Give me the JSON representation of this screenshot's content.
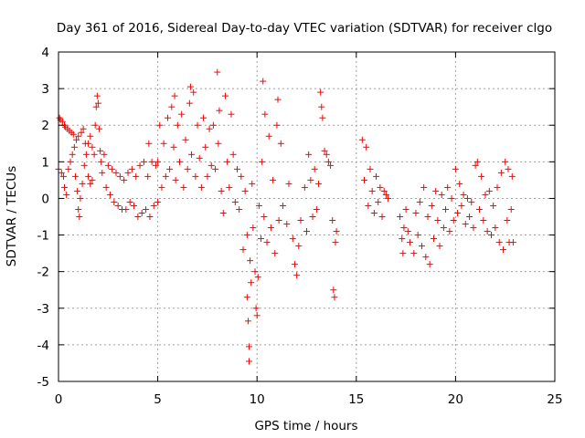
{
  "chart_data": {
    "type": "scatter",
    "title": "Day 361 of 2016, Sidereal Day-to-day VTEC variation (SDTVAR) for receiver clgo",
    "xlabel": "GPS time / hours",
    "ylabel": "SDTVAR / TECUs",
    "xlim": [
      0,
      25
    ],
    "ylim": [
      -5,
      4
    ],
    "xticks": [
      0,
      5,
      10,
      15,
      20,
      25
    ],
    "yticks": [
      -5,
      -4,
      -3,
      -2,
      -1,
      0,
      1,
      2,
      3,
      4
    ],
    "xtick_labels": [
      "0",
      "5",
      "10",
      "15",
      "20",
      "25"
    ],
    "ytick_labels": [
      "-5",
      "-4",
      "-3",
      "-2",
      "-1",
      "0",
      "1",
      "2",
      "3",
      "4"
    ],
    "grid": true,
    "marker": "+",
    "color": "#ff0000",
    "series": [
      {
        "name": "SDTVAR",
        "points": [
          [
            0.0,
            0.8
          ],
          [
            0.05,
            2.2
          ],
          [
            0.1,
            2.15
          ],
          [
            0.15,
            0.7
          ],
          [
            0.2,
            2.1
          ],
          [
            0.25,
            0.6
          ],
          [
            0.3,
            2.0
          ],
          [
            0.3,
            0.3
          ],
          [
            0.35,
            1.95
          ],
          [
            0.4,
            0.1
          ],
          [
            0.45,
            1.9
          ],
          [
            0.5,
            0.8
          ],
          [
            0.55,
            1.85
          ],
          [
            0.6,
            1.0
          ],
          [
            0.65,
            1.8
          ],
          [
            0.7,
            1.2
          ],
          [
            0.75,
            1.75
          ],
          [
            0.8,
            1.4
          ],
          [
            0.85,
            0.6
          ],
          [
            0.9,
            1.6
          ],
          [
            0.95,
            0.2
          ],
          [
            1.0,
            -0.3
          ],
          [
            1.0,
            1.7
          ],
          [
            1.05,
            -0.5
          ],
          [
            1.1,
            0.0
          ],
          [
            1.15,
            1.8
          ],
          [
            1.2,
            0.4
          ],
          [
            1.25,
            1.9
          ],
          [
            1.3,
            0.9
          ],
          [
            1.35,
            1.5
          ],
          [
            1.4,
            1.2
          ],
          [
            1.5,
            0.6
          ],
          [
            1.5,
            1.5
          ],
          [
            1.6,
            0.4
          ],
          [
            1.6,
            1.7
          ],
          [
            1.7,
            0.5
          ],
          [
            1.7,
            1.4
          ],
          [
            1.8,
            1.2
          ],
          [
            1.85,
            2.0
          ],
          [
            1.9,
            2.5
          ],
          [
            1.95,
            2.8
          ],
          [
            2.0,
            2.6
          ],
          [
            2.05,
            1.9
          ],
          [
            2.1,
            1.3
          ],
          [
            2.15,
            1.0
          ],
          [
            2.2,
            0.7
          ],
          [
            2.3,
            1.2
          ],
          [
            2.4,
            0.3
          ],
          [
            2.5,
            0.9
          ],
          [
            2.6,
            0.1
          ],
          [
            2.7,
            0.8
          ],
          [
            2.8,
            -0.1
          ],
          [
            2.9,
            0.7
          ],
          [
            3.0,
            -0.2
          ],
          [
            3.1,
            0.6
          ],
          [
            3.2,
            -0.3
          ],
          [
            3.3,
            0.5
          ],
          [
            3.4,
            -0.3
          ],
          [
            3.5,
            0.7
          ],
          [
            3.6,
            -0.1
          ],
          [
            3.7,
            0.8
          ],
          [
            3.8,
            -0.2
          ],
          [
            3.9,
            0.6
          ],
          [
            4.0,
            -0.5
          ],
          [
            4.1,
            0.9
          ],
          [
            4.2,
            -0.4
          ],
          [
            4.3,
            1.0
          ],
          [
            4.4,
            -0.3
          ],
          [
            4.5,
            0.6
          ],
          [
            4.55,
            1.5
          ],
          [
            4.6,
            -0.5
          ],
          [
            4.7,
            1.0
          ],
          [
            4.8,
            -0.2
          ],
          [
            4.9,
            0.9
          ],
          [
            5.0,
            -0.1
          ],
          [
            5.0,
            1.0
          ],
          [
            5.1,
            2.0
          ],
          [
            5.2,
            0.3
          ],
          [
            5.3,
            1.5
          ],
          [
            5.4,
            0.6
          ],
          [
            5.5,
            2.2
          ],
          [
            5.6,
            0.8
          ],
          [
            5.7,
            2.5
          ],
          [
            5.8,
            1.4
          ],
          [
            5.85,
            2.8
          ],
          [
            5.9,
            0.5
          ],
          [
            6.0,
            2.0
          ],
          [
            6.1,
            1.0
          ],
          [
            6.2,
            2.3
          ],
          [
            6.3,
            0.3
          ],
          [
            6.4,
            1.6
          ],
          [
            6.5,
            0.8
          ],
          [
            6.6,
            2.6
          ],
          [
            6.65,
            3.05
          ],
          [
            6.7,
            1.2
          ],
          [
            6.8,
            2.9
          ],
          [
            6.9,
            0.6
          ],
          [
            7.0,
            2.0
          ],
          [
            7.1,
            1.1
          ],
          [
            7.2,
            0.3
          ],
          [
            7.3,
            2.2
          ],
          [
            7.4,
            1.4
          ],
          [
            7.5,
            0.6
          ],
          [
            7.6,
            1.9
          ],
          [
            7.7,
            0.9
          ],
          [
            7.8,
            2.0
          ],
          [
            7.9,
            0.8
          ],
          [
            8.0,
            3.45
          ],
          [
            8.05,
            1.5
          ],
          [
            8.1,
            2.4
          ],
          [
            8.2,
            0.2
          ],
          [
            8.3,
            -0.4
          ],
          [
            8.4,
            2.8
          ],
          [
            8.5,
            1.0
          ],
          [
            8.6,
            0.3
          ],
          [
            8.7,
            2.3
          ],
          [
            8.8,
            1.2
          ],
          [
            8.9,
            -0.1
          ],
          [
            9.0,
            0.8
          ],
          [
            9.1,
            -0.3
          ],
          [
            9.2,
            0.6
          ],
          [
            9.3,
            -1.4
          ],
          [
            9.4,
            0.2
          ],
          [
            9.5,
            -1.0
          ],
          [
            9.5,
            -2.7
          ],
          [
            9.55,
            -3.35
          ],
          [
            9.6,
            -4.45
          ],
          [
            9.6,
            -4.05
          ],
          [
            9.65,
            -1.7
          ],
          [
            9.7,
            -2.3
          ],
          [
            9.75,
            0.4
          ],
          [
            9.8,
            -0.8
          ],
          [
            9.9,
            -2.0
          ],
          [
            9.95,
            -3.0
          ],
          [
            10.0,
            -3.2
          ],
          [
            10.05,
            -2.15
          ],
          [
            10.1,
            -0.2
          ],
          [
            10.2,
            -1.1
          ],
          [
            10.25,
            1.0
          ],
          [
            10.3,
            3.2
          ],
          [
            10.35,
            -0.5
          ],
          [
            10.4,
            2.3
          ],
          [
            10.5,
            -1.2
          ],
          [
            10.6,
            1.7
          ],
          [
            10.7,
            -0.8
          ],
          [
            10.8,
            0.5
          ],
          [
            10.9,
            -1.5
          ],
          [
            11.0,
            2.0
          ],
          [
            11.05,
            2.7
          ],
          [
            11.1,
            -0.6
          ],
          [
            11.2,
            1.5
          ],
          [
            11.3,
            -0.2
          ],
          [
            11.5,
            -0.7
          ],
          [
            11.6,
            0.4
          ],
          [
            11.8,
            -1.1
          ],
          [
            11.9,
            -1.8
          ],
          [
            12.0,
            -2.1
          ],
          [
            12.1,
            -1.3
          ],
          [
            12.2,
            -0.6
          ],
          [
            12.4,
            0.3
          ],
          [
            12.5,
            -0.9
          ],
          [
            12.6,
            1.2
          ],
          [
            12.7,
            0.5
          ],
          [
            12.8,
            -0.5
          ],
          [
            12.9,
            0.8
          ],
          [
            13.0,
            -0.3
          ],
          [
            13.1,
            0.4
          ],
          [
            13.2,
            2.9
          ],
          [
            13.25,
            2.5
          ],
          [
            13.3,
            2.2
          ],
          [
            13.4,
            1.3
          ],
          [
            13.5,
            1.2
          ],
          [
            13.6,
            1.0
          ],
          [
            13.7,
            0.9
          ],
          [
            13.8,
            -0.6
          ],
          [
            13.85,
            -2.5
          ],
          [
            13.9,
            -2.7
          ],
          [
            13.95,
            -1.2
          ],
          [
            14.0,
            -0.9
          ],
          [
            15.3,
            1.6
          ],
          [
            15.4,
            0.5
          ],
          [
            15.5,
            1.4
          ],
          [
            15.6,
            -0.2
          ],
          [
            15.7,
            0.8
          ],
          [
            15.8,
            0.2
          ],
          [
            15.9,
            -0.4
          ],
          [
            16.0,
            0.6
          ],
          [
            16.1,
            -0.1
          ],
          [
            16.2,
            0.3
          ],
          [
            16.3,
            -0.5
          ],
          [
            16.4,
            0.2
          ],
          [
            16.5,
            0.1
          ],
          [
            16.6,
            0.0
          ],
          [
            17.2,
            -0.5
          ],
          [
            17.3,
            -1.1
          ],
          [
            17.35,
            -1.5
          ],
          [
            17.4,
            -0.8
          ],
          [
            17.5,
            -0.3
          ],
          [
            17.6,
            -0.9
          ],
          [
            17.7,
            -1.2
          ],
          [
            17.9,
            -1.5
          ],
          [
            18.0,
            -0.4
          ],
          [
            18.1,
            -1.0
          ],
          [
            18.2,
            -0.1
          ],
          [
            18.3,
            -1.3
          ],
          [
            18.4,
            0.3
          ],
          [
            18.5,
            -1.6
          ],
          [
            18.6,
            -0.5
          ],
          [
            18.7,
            -1.8
          ],
          [
            18.8,
            -0.2
          ],
          [
            18.9,
            -1.1
          ],
          [
            19.0,
            0.2
          ],
          [
            19.1,
            -0.6
          ],
          [
            19.2,
            -1.3
          ],
          [
            19.3,
            0.1
          ],
          [
            19.4,
            -0.8
          ],
          [
            19.5,
            -0.3
          ],
          [
            19.6,
            0.3
          ],
          [
            19.7,
            -0.9
          ],
          [
            19.8,
            0.0
          ],
          [
            19.9,
            -0.6
          ],
          [
            20.0,
            0.8
          ],
          [
            20.1,
            -0.4
          ],
          [
            20.2,
            0.4
          ],
          [
            20.3,
            -0.2
          ],
          [
            20.4,
            0.1
          ],
          [
            20.5,
            -0.7
          ],
          [
            20.6,
            0.0
          ],
          [
            20.7,
            -0.5
          ],
          [
            20.8,
            -0.1
          ],
          [
            20.9,
            -0.8
          ],
          [
            21.0,
            0.9
          ],
          [
            21.1,
            1.0
          ],
          [
            21.2,
            -0.3
          ],
          [
            21.3,
            0.6
          ],
          [
            21.4,
            -0.6
          ],
          [
            21.5,
            0.1
          ],
          [
            21.6,
            -0.9
          ],
          [
            21.7,
            0.2
          ],
          [
            21.8,
            -1.0
          ],
          [
            21.9,
            -0.2
          ],
          [
            22.0,
            -0.8
          ],
          [
            22.1,
            0.3
          ],
          [
            22.2,
            -1.2
          ],
          [
            22.3,
            0.7
          ],
          [
            22.4,
            -1.4
          ],
          [
            22.5,
            1.0
          ],
          [
            22.6,
            -0.6
          ],
          [
            22.65,
            0.8
          ],
          [
            22.7,
            -1.2
          ],
          [
            22.8,
            -0.3
          ],
          [
            22.85,
            0.6
          ],
          [
            22.9,
            -1.2
          ]
        ]
      }
    ]
  }
}
